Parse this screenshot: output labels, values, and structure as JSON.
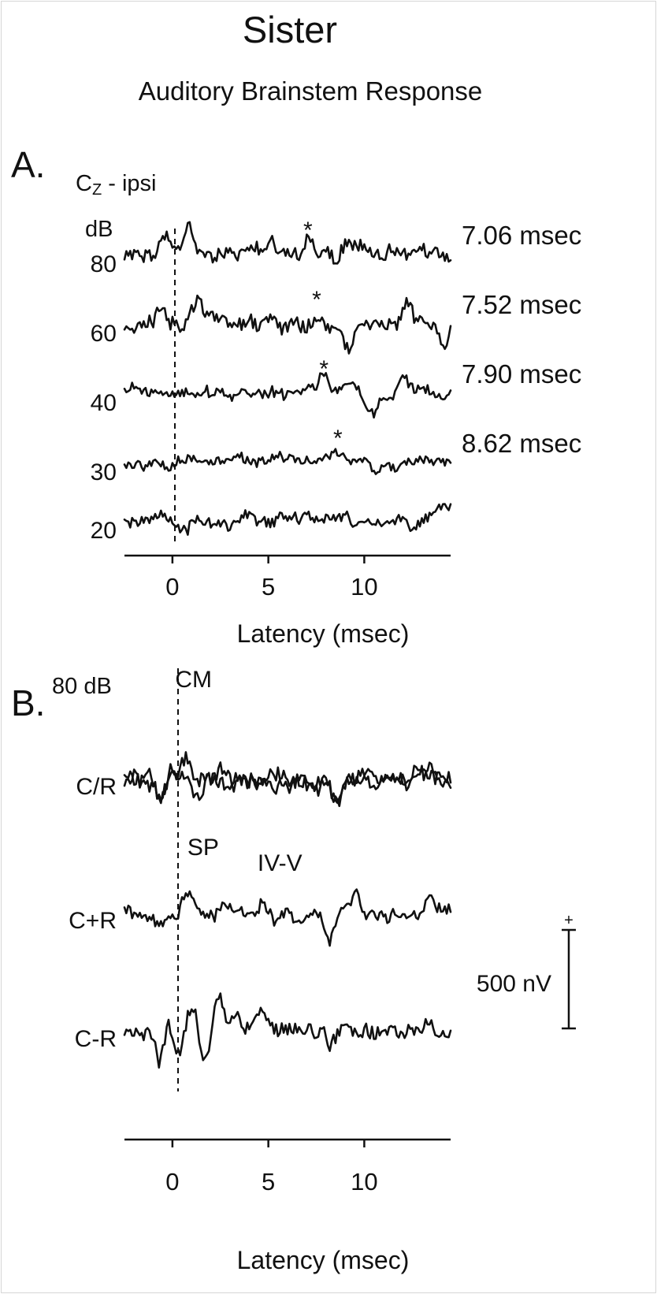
{
  "title": "Sister",
  "subtitle": "Auditory Brainstem Response",
  "chart_data": [
    {
      "panel": "A.",
      "type": "line",
      "channel": "Cz - ipsi",
      "channel_base": "C",
      "channel_sub": "Z",
      "channel_rest": " - ipsi",
      "level_unit": "dB",
      "xlabel": "Latency (msec)",
      "xticks": [
        0,
        5,
        10
      ],
      "xlim": [
        -2.5,
        14.5
      ],
      "stimulus_onset_msec": 0,
      "series": [
        {
          "name": "80",
          "peak_marker": "*",
          "peak_latency_msec": 7.06,
          "peak_label": "7.06 msec",
          "seed": 11,
          "roughness": 1.0,
          "peaks": [
            [
              -0.4,
              2.0
            ],
            [
              0.9,
              2.8
            ],
            [
              5.2,
              1.4
            ],
            [
              7.06,
              1.6
            ],
            [
              8.6,
              -1.0
            ],
            [
              11.5,
              0.5
            ]
          ]
        },
        {
          "name": "60",
          "peak_marker": "*",
          "peak_latency_msec": 7.52,
          "peak_label": "7.52 msec",
          "seed": 23,
          "roughness": 1.0,
          "peaks": [
            [
              -0.6,
              1.4
            ],
            [
              1.3,
              1.8
            ],
            [
              4.5,
              -0.6
            ],
            [
              7.52,
              1.6
            ],
            [
              9.2,
              -2.6
            ],
            [
              12.3,
              2.4
            ],
            [
              14.2,
              -2.0
            ]
          ]
        },
        {
          "name": "40",
          "peak_marker": "*",
          "peak_latency_msec": 7.9,
          "peak_label": "7.90 msec",
          "seed": 37,
          "roughness": 0.7,
          "peaks": [
            [
              -1.8,
              1.2
            ],
            [
              3.0,
              -0.5
            ],
            [
              7.9,
              1.8
            ],
            [
              10.5,
              -2.4
            ],
            [
              12.0,
              2.2
            ],
            [
              14.0,
              -0.8
            ]
          ]
        },
        {
          "name": "30",
          "peak_marker": "*",
          "peak_latency_msec": 8.62,
          "peak_label": "8.62 msec",
          "seed": 53,
          "roughness": 0.6,
          "peaks": [
            [
              -0.3,
              -0.6
            ],
            [
              2.0,
              0.3
            ],
            [
              8.62,
              1.0
            ],
            [
              10.5,
              -1.0
            ],
            [
              14.0,
              0.6
            ]
          ]
        },
        {
          "name": "20",
          "seed": 71,
          "roughness": 0.8,
          "peaks": [
            [
              -0.5,
              0.8
            ],
            [
              0.6,
              -1.0
            ],
            [
              5.5,
              0.6
            ],
            [
              9.0,
              0.3
            ],
            [
              12.5,
              -1.0
            ],
            [
              14.2,
              1.2
            ]
          ]
        }
      ]
    },
    {
      "panel": "B.",
      "type": "line",
      "level": "80 dB",
      "xlabel": "Latency (msec)",
      "xticks": [
        0,
        5,
        10
      ],
      "xlim": [
        -2.5,
        14.5
      ],
      "stimulus_onset_msec": 0,
      "scale_bar": {
        "label": "500 nV",
        "polarity": "+",
        "value_nV": 500
      },
      "series": [
        {
          "name": "C/R",
          "seed": 101,
          "roughness": 1.1,
          "peaks": [
            [
              -0.5,
              -3.0
            ],
            [
              -0.3,
              2.5
            ],
            [
              0.7,
              2.0
            ],
            [
              2.5,
              1.3
            ],
            [
              7.5,
              -1.3
            ],
            [
              8.5,
              -2.0
            ],
            [
              13.5,
              1.4
            ]
          ]
        },
        {
          "name": "C/R",
          "seed": 131,
          "roughness": 1.1,
          "peaks": [
            [
              -0.5,
              -3.2
            ],
            [
              -0.3,
              2.2
            ],
            [
              1.3,
              -1.8
            ],
            [
              3.0,
              -1.3
            ],
            [
              7.3,
              -0.8
            ],
            [
              8.6,
              -2.4
            ],
            [
              13.0,
              1.0
            ]
          ]
        },
        {
          "name": "C+R",
          "seed": 149,
          "roughness": 0.9,
          "peaks": [
            [
              -0.6,
              -1.4
            ],
            [
              0.8,
              2.6
            ],
            [
              4.8,
              1.3
            ],
            [
              6.0,
              0.9
            ],
            [
              8.2,
              -3.3
            ],
            [
              9.5,
              1.8
            ],
            [
              13.5,
              1.4
            ]
          ]
        },
        {
          "name": "C-R",
          "seed": 173,
          "roughness": 1.0,
          "peaks": [
            [
              -0.5,
              -8.0
            ],
            [
              -0.4,
              6.5
            ],
            [
              0.3,
              -2.2
            ],
            [
              1.0,
              3.3
            ],
            [
              1.7,
              -3.3
            ],
            [
              2.4,
              4.0
            ],
            [
              3.4,
              2.0
            ],
            [
              4.7,
              2.2
            ],
            [
              8.3,
              -1.2
            ],
            [
              13.3,
              1.2
            ]
          ]
        }
      ],
      "annotations": [
        {
          "text": "CM",
          "x_msec": 1.1
        },
        {
          "text": "SP",
          "x_msec": 1.6
        },
        {
          "text": "IV-V",
          "x_msec": 5.6
        }
      ]
    }
  ]
}
